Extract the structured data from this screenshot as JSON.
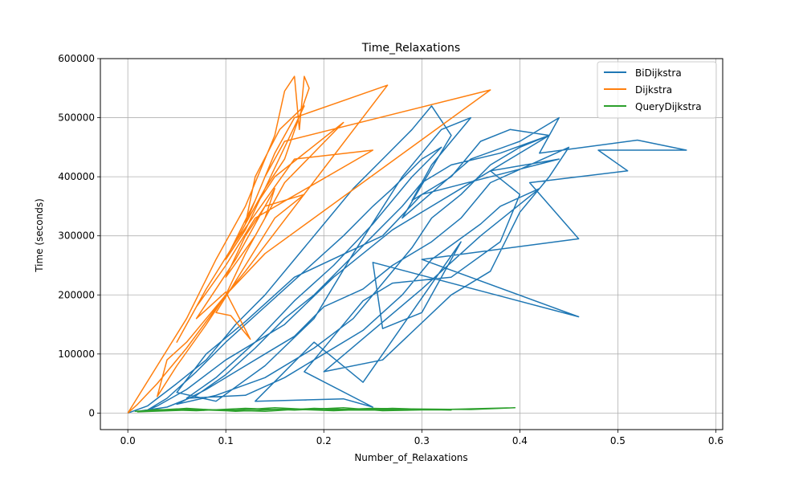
{
  "chart_data": {
    "type": "line",
    "title": "Time_Relaxations",
    "xlabel": "Number_of_Relaxations",
    "ylabel": "Time (seconds)",
    "xlim": [
      -0.028,
      0.607
    ],
    "ylim": [
      -28000,
      600000
    ],
    "xticks": [
      0.0,
      0.1,
      0.2,
      0.3,
      0.4,
      0.5,
      0.6
    ],
    "xtick_labels": [
      "0.0",
      "0.1",
      "0.2",
      "0.3",
      "0.4",
      "0.5",
      "0.6"
    ],
    "yticks": [
      0,
      100000,
      200000,
      300000,
      400000,
      500000,
      600000
    ],
    "ytick_labels": [
      "0",
      "100000",
      "200000",
      "300000",
      "400000",
      "500000",
      "600000"
    ],
    "grid": true,
    "legend_position": "top-right",
    "series": [
      {
        "name": "BiDijkstra",
        "color": "#1f77b4",
        "points": [
          [
            0.0,
            0
          ],
          [
            0.02,
            12000
          ],
          [
            0.05,
            50000
          ],
          [
            0.08,
            90000
          ],
          [
            0.11,
            150000
          ],
          [
            0.14,
            200000
          ],
          [
            0.17,
            260000
          ],
          [
            0.2,
            320000
          ],
          [
            0.23,
            380000
          ],
          [
            0.26,
            430000
          ],
          [
            0.29,
            480000
          ],
          [
            0.31,
            520000
          ],
          [
            0.33,
            470000
          ],
          [
            0.28,
            330000
          ],
          [
            0.35,
            430000
          ],
          [
            0.4,
            460000
          ],
          [
            0.44,
            500000
          ],
          [
            0.42,
            440000
          ],
          [
            0.52,
            462000
          ],
          [
            0.57,
            445000
          ],
          [
            0.48,
            445000
          ],
          [
            0.51,
            410000
          ],
          [
            0.41,
            390000
          ],
          [
            0.46,
            295000
          ],
          [
            0.3,
            260000
          ],
          [
            0.46,
            163000
          ],
          [
            0.25,
            255000
          ],
          [
            0.26,
            143000
          ],
          [
            0.3,
            170000
          ],
          [
            0.34,
            290000
          ],
          [
            0.24,
            52000
          ],
          [
            0.19,
            120000
          ],
          [
            0.13,
            20000
          ],
          [
            0.22,
            24000
          ],
          [
            0.25,
            10000
          ],
          [
            0.18,
            70000
          ],
          [
            0.24,
            190000
          ],
          [
            0.27,
            220000
          ],
          [
            0.33,
            230000
          ],
          [
            0.38,
            290000
          ],
          [
            0.4,
            370000
          ],
          [
            0.37,
            410000
          ],
          [
            0.44,
            430000
          ],
          [
            0.3,
            370000
          ],
          [
            0.26,
            300000
          ],
          [
            0.17,
            230000
          ],
          [
            0.12,
            155000
          ],
          [
            0.08,
            100000
          ],
          [
            0.05,
            35000
          ],
          [
            0.09,
            20000
          ],
          [
            0.14,
            80000
          ],
          [
            0.19,
            160000
          ],
          [
            0.23,
            270000
          ],
          [
            0.28,
            400000
          ],
          [
            0.32,
            480000
          ],
          [
            0.35,
            500000
          ],
          [
            0.31,
            420000
          ],
          [
            0.29,
            360000
          ],
          [
            0.33,
            400000
          ],
          [
            0.36,
            460000
          ],
          [
            0.39,
            480000
          ],
          [
            0.43,
            470000
          ],
          [
            0.34,
            380000
          ],
          [
            0.27,
            310000
          ],
          [
            0.21,
            230000
          ],
          [
            0.16,
            150000
          ],
          [
            0.1,
            90000
          ],
          [
            0.06,
            40000
          ],
          [
            0.03,
            12000
          ],
          [
            0.02,
            5000
          ],
          [
            0.04,
            25000
          ],
          [
            0.07,
            70000
          ],
          [
            0.1,
            120000
          ],
          [
            0.14,
            180000
          ],
          [
            0.18,
            240000
          ],
          [
            0.22,
            300000
          ],
          [
            0.25,
            350000
          ],
          [
            0.27,
            380000
          ],
          [
            0.3,
            430000
          ],
          [
            0.32,
            450000
          ],
          [
            0.29,
            400000
          ],
          [
            0.25,
            320000
          ],
          [
            0.21,
            250000
          ],
          [
            0.17,
            190000
          ],
          [
            0.13,
            120000
          ],
          [
            0.09,
            60000
          ],
          [
            0.06,
            25000
          ],
          [
            0.12,
            30000
          ],
          [
            0.16,
            60000
          ],
          [
            0.2,
            100000
          ],
          [
            0.24,
            140000
          ],
          [
            0.28,
            200000
          ],
          [
            0.31,
            260000
          ],
          [
            0.36,
            320000
          ],
          [
            0.38,
            350000
          ],
          [
            0.42,
            380000
          ],
          [
            0.36,
            300000
          ],
          [
            0.3,
            210000
          ],
          [
            0.2,
            70000
          ],
          [
            0.26,
            90000
          ],
          [
            0.33,
            200000
          ],
          [
            0.37,
            240000
          ],
          [
            0.4,
            340000
          ],
          [
            0.43,
            400000
          ],
          [
            0.45,
            450000
          ],
          [
            0.41,
            420000
          ],
          [
            0.37,
            390000
          ],
          [
            0.34,
            330000
          ],
          [
            0.31,
            290000
          ],
          [
            0.27,
            250000
          ],
          [
            0.24,
            210000
          ],
          [
            0.2,
            180000
          ],
          [
            0.17,
            130000
          ],
          [
            0.14,
            100000
          ],
          [
            0.11,
            70000
          ],
          [
            0.08,
            40000
          ],
          [
            0.05,
            15000
          ],
          [
            0.09,
            30000
          ],
          [
            0.14,
            60000
          ],
          [
            0.19,
            110000
          ],
          [
            0.23,
            160000
          ],
          [
            0.26,
            220000
          ],
          [
            0.29,
            280000
          ],
          [
            0.31,
            330000
          ],
          [
            0.34,
            370000
          ],
          [
            0.37,
            420000
          ],
          [
            0.4,
            450000
          ],
          [
            0.43,
            470000
          ],
          [
            0.38,
            440000
          ],
          [
            0.33,
            420000
          ],
          [
            0.3,
            390000
          ],
          [
            0.28,
            350000
          ],
          [
            0.25,
            300000
          ],
          [
            0.22,
            250000
          ],
          [
            0.19,
            200000
          ],
          [
            0.16,
            160000
          ],
          [
            0.13,
            110000
          ],
          [
            0.1,
            65000
          ],
          [
            0.07,
            30000
          ],
          [
            0.04,
            10000
          ],
          [
            0.01,
            3000
          ]
        ]
      },
      {
        "name": "Dijkstra",
        "color": "#ff7f0e",
        "points": [
          [
            0.0,
            0
          ],
          [
            0.03,
            80000
          ],
          [
            0.06,
            160000
          ],
          [
            0.09,
            260000
          ],
          [
            0.12,
            350000
          ],
          [
            0.15,
            470000
          ],
          [
            0.16,
            545000
          ],
          [
            0.17,
            570000
          ],
          [
            0.175,
            480000
          ],
          [
            0.18,
            570000
          ],
          [
            0.185,
            550000
          ],
          [
            0.16,
            430000
          ],
          [
            0.14,
            380000
          ],
          [
            0.12,
            310000
          ],
          [
            0.1,
            260000
          ],
          [
            0.13,
            360000
          ],
          [
            0.15,
            440000
          ],
          [
            0.17,
            500000
          ],
          [
            0.265,
            555000
          ],
          [
            0.12,
            240000
          ],
          [
            0.09,
            180000
          ],
          [
            0.06,
            120000
          ],
          [
            0.04,
            90000
          ],
          [
            0.03,
            28000
          ],
          [
            0.05,
            80000
          ],
          [
            0.08,
            150000
          ],
          [
            0.1,
            200000
          ],
          [
            0.12,
            270000
          ],
          [
            0.14,
            330000
          ],
          [
            0.15,
            380000
          ],
          [
            0.13,
            320000
          ],
          [
            0.11,
            260000
          ],
          [
            0.09,
            210000
          ],
          [
            0.07,
            160000
          ],
          [
            0.1,
            205000
          ],
          [
            0.125,
            125000
          ],
          [
            0.105,
            165000
          ],
          [
            0.09,
            170000
          ],
          [
            0.12,
            250000
          ],
          [
            0.15,
            330000
          ],
          [
            0.18,
            370000
          ],
          [
            0.14,
            350000
          ],
          [
            0.12,
            300000
          ],
          [
            0.1,
            230000
          ],
          [
            0.13,
            300000
          ],
          [
            0.16,
            390000
          ],
          [
            0.22,
            492000
          ],
          [
            0.15,
            400000
          ],
          [
            0.13,
            350000
          ],
          [
            0.11,
            290000
          ],
          [
            0.14,
            360000
          ],
          [
            0.17,
            430000
          ],
          [
            0.25,
            445000
          ],
          [
            0.13,
            330000
          ],
          [
            0.1,
            250000
          ],
          [
            0.07,
            180000
          ],
          [
            0.05,
            120000
          ],
          [
            0.08,
            210000
          ],
          [
            0.11,
            290000
          ],
          [
            0.14,
            380000
          ],
          [
            0.16,
            450000
          ],
          [
            0.18,
            520000
          ],
          [
            0.155,
            480000
          ],
          [
            0.13,
            400000
          ],
          [
            0.12,
            320000
          ],
          [
            0.14,
            400000
          ],
          [
            0.16,
            460000
          ],
          [
            0.37,
            547000
          ],
          [
            0.14,
            270000
          ],
          [
            0.1,
            200000
          ],
          [
            0.06,
            110000
          ],
          [
            0.03,
            50000
          ],
          [
            0.01,
            15000
          ],
          [
            0.0,
            0
          ]
        ]
      },
      {
        "name": "QueryDijkstra",
        "color": "#2ca02c",
        "points": [
          [
            0.007,
            3000
          ],
          [
            0.05,
            7000
          ],
          [
            0.1,
            4000
          ],
          [
            0.15,
            9000
          ],
          [
            0.2,
            5000
          ],
          [
            0.25,
            8000
          ],
          [
            0.3,
            6000
          ],
          [
            0.33,
            5000
          ],
          [
            0.27,
            8000
          ],
          [
            0.21,
            4000
          ],
          [
            0.16,
            7000
          ],
          [
            0.11,
            3000
          ],
          [
            0.06,
            8000
          ],
          [
            0.01,
            2000
          ],
          [
            0.08,
            6000
          ],
          [
            0.14,
            3000
          ],
          [
            0.19,
            8000
          ],
          [
            0.24,
            5000
          ],
          [
            0.29,
            7000
          ],
          [
            0.35,
            6000
          ],
          [
            0.395,
            9000
          ],
          [
            0.32,
            6000
          ],
          [
            0.26,
            4000
          ],
          [
            0.22,
            9000
          ],
          [
            0.17,
            5000
          ],
          [
            0.12,
            8000
          ],
          [
            0.07,
            4000
          ],
          [
            0.03,
            6000
          ],
          [
            0.009,
            3000
          ]
        ]
      }
    ]
  }
}
